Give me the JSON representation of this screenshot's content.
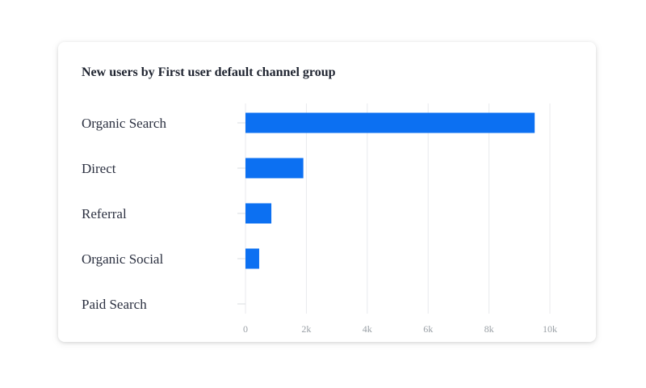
{
  "card": {
    "title": "New users by First user default channel group"
  },
  "colors": {
    "bar": "#0c70f2",
    "grid": "#e8eaed",
    "label": "#2b3040",
    "tick": "#9aa0a6"
  },
  "chart_data": {
    "type": "bar",
    "orientation": "horizontal",
    "title": "New users by First user default channel group",
    "categories": [
      "Organic Search",
      "Direct",
      "Referral",
      "Organic Social",
      "Paid Search"
    ],
    "values": [
      9500,
      1900,
      850,
      450,
      0
    ],
    "xlim": [
      0,
      10000
    ],
    "x_ticks": [
      0,
      2000,
      4000,
      6000,
      8000,
      10000
    ],
    "x_tick_labels": [
      "0",
      "2k",
      "4k",
      "6k",
      "8k",
      "10k"
    ],
    "grid": true,
    "legend": "none"
  }
}
